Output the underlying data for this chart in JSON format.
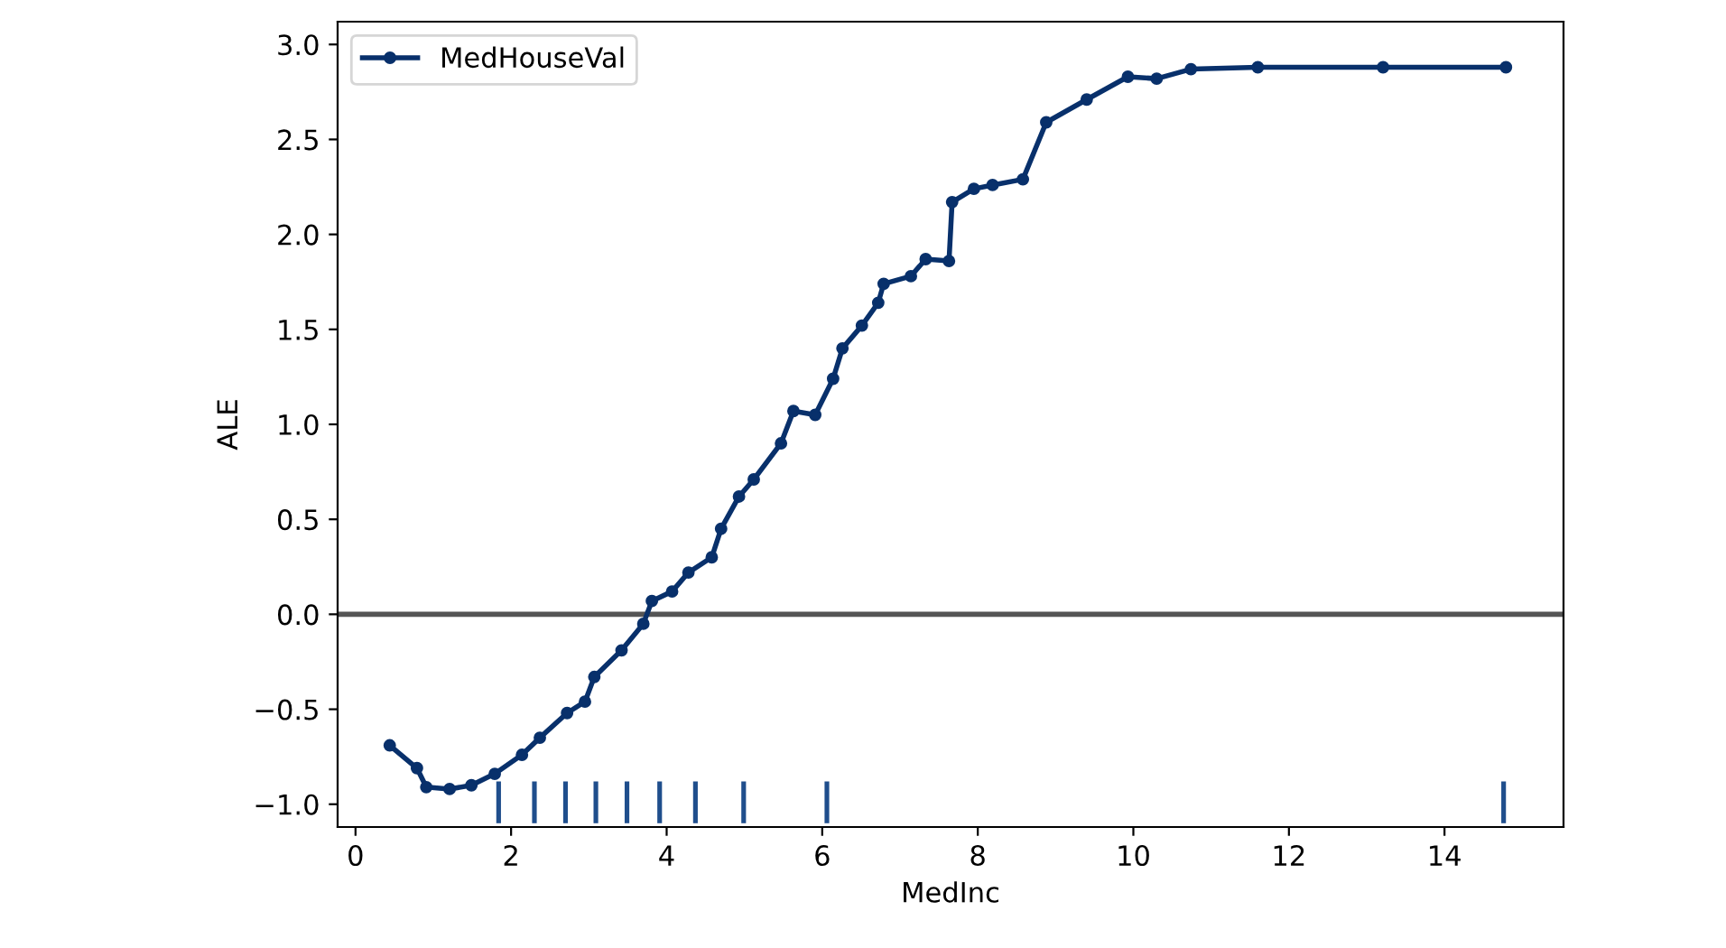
{
  "chart_data": {
    "type": "line",
    "xlabel": "MedInc",
    "ylabel": "ALE",
    "xlim": [
      -0.23,
      15.53
    ],
    "ylim": [
      -1.12,
      3.12
    ],
    "xticks": [
      0,
      2,
      4,
      6,
      8,
      10,
      12,
      14
    ],
    "yticks": [
      {
        "value": -1.0,
        "label": "−1.0"
      },
      {
        "value": -0.5,
        "label": "−0.5"
      },
      {
        "value": 0.0,
        "label": "0.0"
      },
      {
        "value": 0.5,
        "label": "0.5"
      },
      {
        "value": 1.0,
        "label": "1.0"
      },
      {
        "value": 1.5,
        "label": "1.5"
      },
      {
        "value": 2.0,
        "label": "2.0"
      },
      {
        "value": 2.5,
        "label": "2.5"
      },
      {
        "value": 3.0,
        "label": "3.0"
      }
    ],
    "grid": false,
    "legend": "top left",
    "marker": "circle",
    "line_style": "solid",
    "ref_lines": [
      {
        "axis": "y",
        "value": 0,
        "color": "#555555"
      }
    ],
    "series": [
      {
        "name": "MedHouseVal",
        "color": "#08306b",
        "x": [
          0.44,
          0.79,
          0.91,
          1.21,
          1.49,
          1.79,
          2.14,
          2.37,
          2.72,
          2.95,
          3.07,
          3.42,
          3.7,
          3.81,
          4.07,
          4.28,
          4.58,
          4.7,
          4.93,
          5.12,
          5.47,
          5.63,
          5.91,
          6.14,
          6.26,
          6.51,
          6.72,
          6.79,
          7.14,
          7.33,
          7.63,
          7.67,
          7.95,
          8.19,
          8.58,
          8.88,
          9.4,
          9.93,
          10.3,
          10.74,
          11.6,
          13.21,
          14.79
        ],
        "values": [
          -0.69,
          -0.81,
          -0.91,
          -0.92,
          -0.9,
          -0.84,
          -0.74,
          -0.65,
          -0.52,
          -0.46,
          -0.33,
          -0.19,
          -0.05,
          0.07,
          0.12,
          0.22,
          0.3,
          0.45,
          0.62,
          0.71,
          0.9,
          1.07,
          1.05,
          1.24,
          1.4,
          1.52,
          1.64,
          1.74,
          1.78,
          1.87,
          1.86,
          2.17,
          2.24,
          2.26,
          2.29,
          2.59,
          2.71,
          2.83,
          2.82,
          2.87,
          2.88,
          2.88,
          2.88
        ]
      },
      {
        "type": "bar",
        "color": "#1f4e8c",
        "x": [
          1.84,
          2.3,
          2.7,
          3.09,
          3.49,
          3.91,
          4.37,
          4.99,
          6.06,
          14.76
        ],
        "base": [
          -1.1,
          -1.1,
          -1.1,
          -1.1,
          -1.1,
          -1.1,
          -1.1,
          -1.1,
          -1.1,
          -1.1
        ],
        "values": [
          0.22,
          0.22,
          0.22,
          0.22,
          0.22,
          0.22,
          0.22,
          0.22,
          0.22,
          0.22
        ]
      }
    ]
  }
}
